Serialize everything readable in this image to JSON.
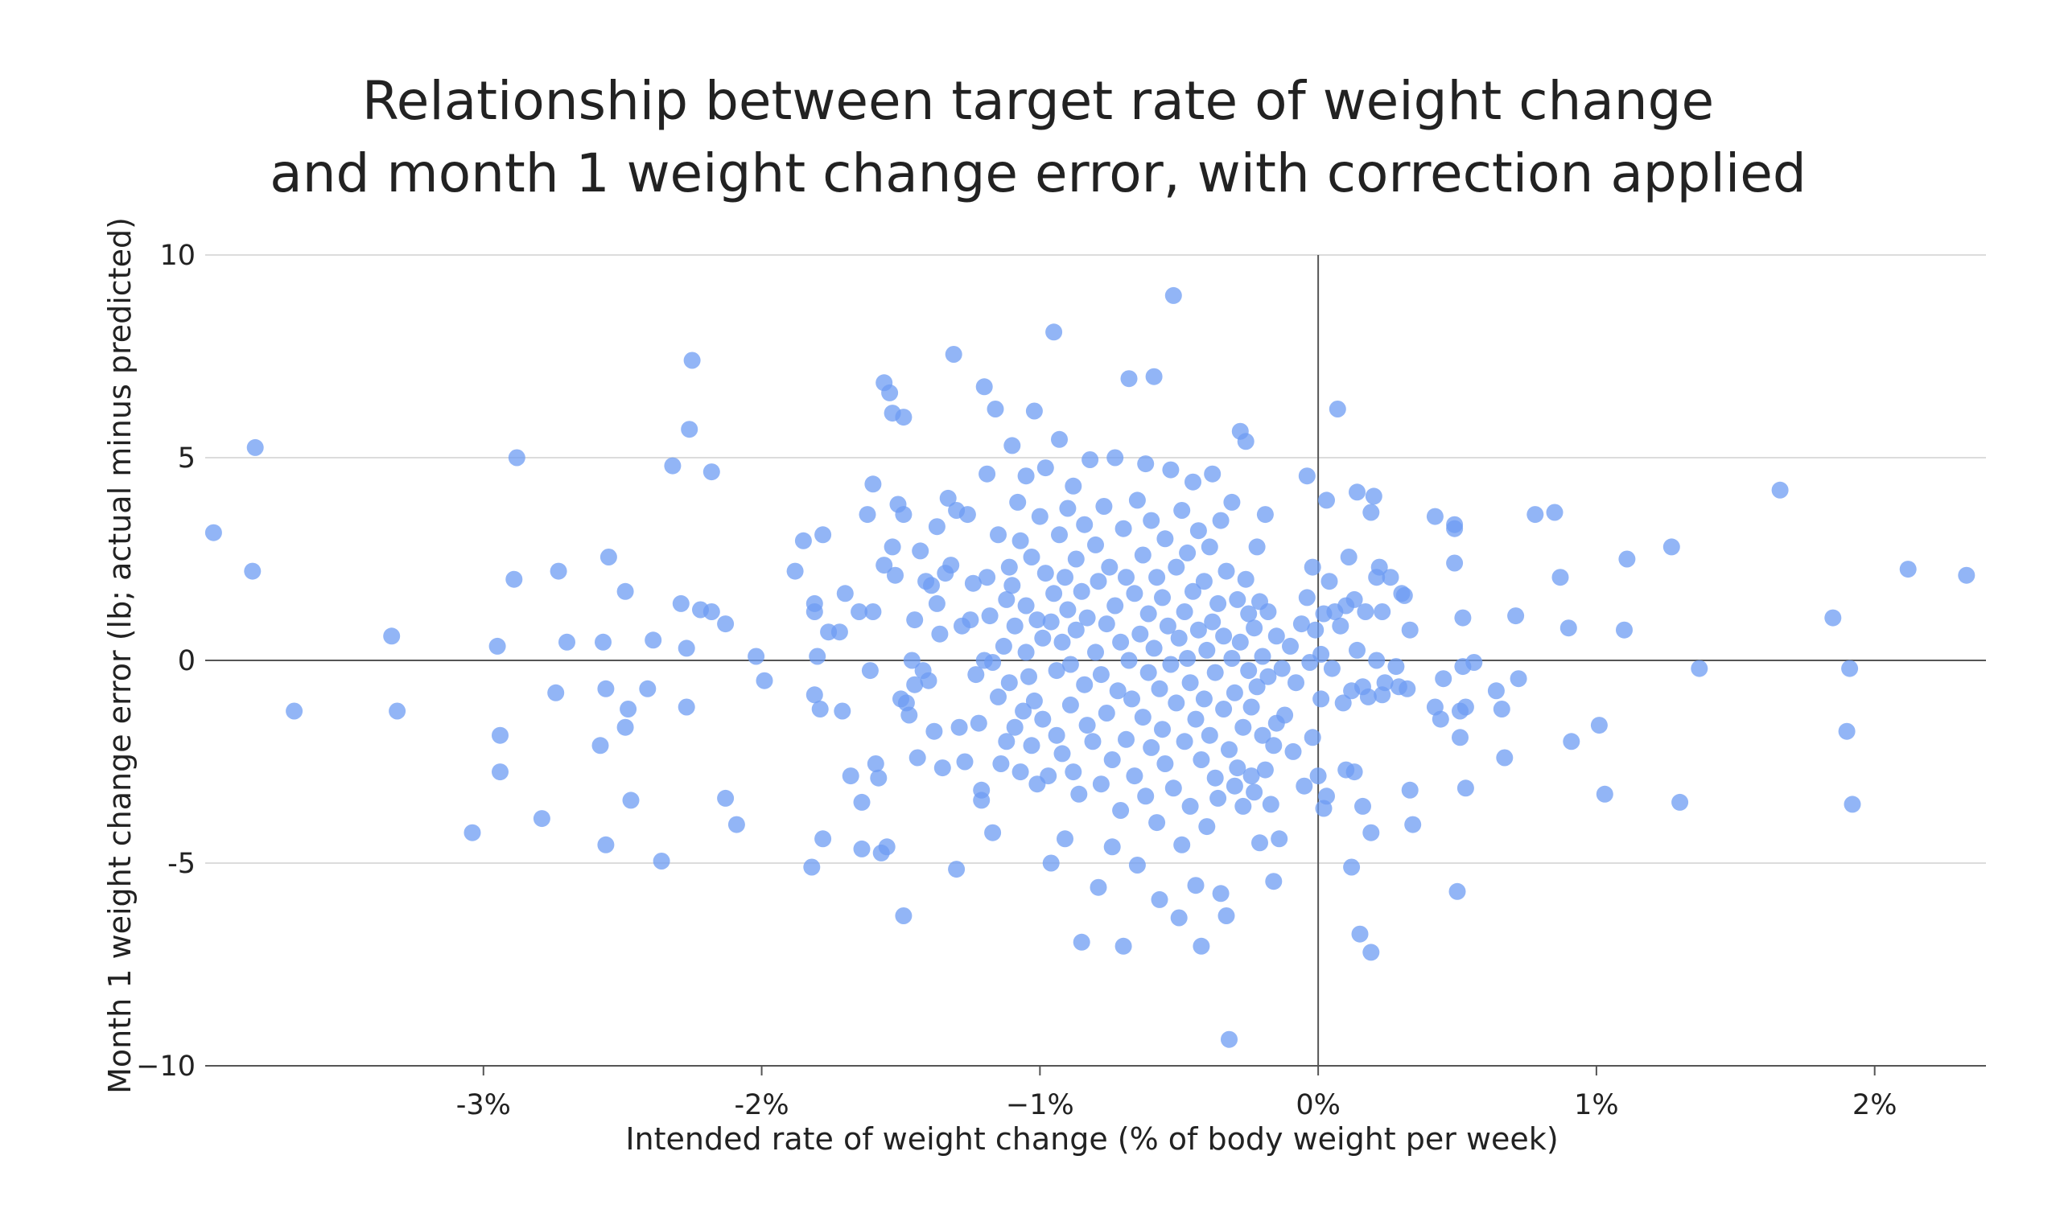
{
  "chart_data": {
    "type": "scatter",
    "title_lines": [
      "Relationship between target rate of weight change",
      "and month 1 weight change error, with correction applied"
    ],
    "xlabel": "Intended rate of weight change (% of body weight per week)",
    "ylabel": "Month 1 weight change error (lb; actual minus predicted)",
    "xlim": [
      -4.0,
      2.4
    ],
    "ylim": [
      -10,
      10
    ],
    "x_unit": "percent of body weight per week",
    "y_unit": "lb",
    "x_ticks": [
      {
        "value": -3,
        "label": "-3%"
      },
      {
        "value": -2,
        "label": "-2%"
      },
      {
        "value": -1,
        "label": "−1%"
      },
      {
        "value": 0,
        "label": "0%"
      },
      {
        "value": 1,
        "label": "1%"
      },
      {
        "value": 2,
        "label": "2%"
      }
    ],
    "y_ticks": [
      {
        "value": 10,
        "label": "10"
      },
      {
        "value": 5,
        "label": "5"
      },
      {
        "value": 0,
        "label": "0"
      },
      {
        "value": -5,
        "label": "-5"
      },
      {
        "value": -10,
        "label": "−10"
      }
    ],
    "grid": "horizontal",
    "reference_lines": {
      "x": 0,
      "y": 0
    },
    "marker_color": "#6d9cf3",
    "marker_opacity": 0.75,
    "points": [
      [
        -3.97,
        3.15
      ],
      [
        -3.82,
        5.25
      ],
      [
        -3.83,
        2.2
      ],
      [
        -3.68,
        -1.25
      ],
      [
        -3.33,
        0.6
      ],
      [
        -3.31,
        -1.25
      ],
      [
        -3.04,
        -4.25
      ],
      [
        -2.94,
        -1.85
      ],
      [
        -2.94,
        -2.75
      ],
      [
        -2.95,
        0.35
      ],
      [
        -2.89,
        2.0
      ],
      [
        -2.88,
        5.0
      ],
      [
        -2.79,
        -3.9
      ],
      [
        -2.74,
        -0.8
      ],
      [
        -2.73,
        2.2
      ],
      [
        -2.7,
        0.45
      ],
      [
        -2.58,
        -2.1
      ],
      [
        -2.57,
        0.45
      ],
      [
        -2.56,
        -4.55
      ],
      [
        -2.56,
        -0.7
      ],
      [
        -2.55,
        2.55
      ],
      [
        -2.49,
        1.7
      ],
      [
        -2.49,
        -1.65
      ],
      [
        -2.48,
        -1.2
      ],
      [
        -2.47,
        -3.45
      ],
      [
        -2.41,
        -0.7
      ],
      [
        -2.39,
        0.5
      ],
      [
        -2.36,
        -4.95
      ],
      [
        -2.32,
        4.8
      ],
      [
        -2.29,
        1.4
      ],
      [
        -2.27,
        0.3
      ],
      [
        -2.27,
        -1.15
      ],
      [
        -2.26,
        5.7
      ],
      [
        -2.25,
        7.4
      ],
      [
        -2.22,
        1.25
      ],
      [
        -2.18,
        4.65
      ],
      [
        -2.18,
        1.2
      ],
      [
        -2.13,
        -3.4
      ],
      [
        -2.13,
        0.9
      ],
      [
        -2.09,
        -4.05
      ],
      [
        -2.02,
        0.1
      ],
      [
        -1.99,
        -0.5
      ],
      [
        -1.88,
        2.2
      ],
      [
        -1.85,
        2.95
      ],
      [
        -1.82,
        -5.1
      ],
      [
        -1.81,
        -0.85
      ],
      [
        -1.81,
        1.4
      ],
      [
        -1.81,
        1.2
      ],
      [
        -1.8,
        0.1
      ],
      [
        -1.79,
        -1.2
      ],
      [
        -1.78,
        -4.4
      ],
      [
        -1.78,
        3.1
      ],
      [
        -1.76,
        0.7
      ],
      [
        -1.72,
        0.7
      ],
      [
        -1.71,
        -1.25
      ],
      [
        -1.7,
        1.65
      ],
      [
        -1.68,
        -2.85
      ],
      [
        -1.65,
        1.2
      ],
      [
        -1.64,
        -4.65
      ],
      [
        -1.64,
        -3.5
      ],
      [
        -1.62,
        3.6
      ],
      [
        -1.61,
        -0.25
      ],
      [
        -1.6,
        4.35
      ],
      [
        -1.6,
        1.2
      ],
      [
        -1.59,
        -2.55
      ],
      [
        -1.58,
        -2.9
      ],
      [
        -1.57,
        -4.75
      ],
      [
        -1.56,
        6.85
      ],
      [
        -1.56,
        2.35
      ],
      [
        -1.55,
        -4.6
      ],
      [
        -1.54,
        6.6
      ],
      [
        -1.53,
        6.1
      ],
      [
        -1.53,
        2.8
      ],
      [
        -1.52,
        2.1
      ],
      [
        -1.51,
        3.85
      ],
      [
        -1.5,
        -0.95
      ],
      [
        -1.49,
        -6.3
      ],
      [
        -1.49,
        6.0
      ],
      [
        -1.49,
        3.6
      ],
      [
        -1.48,
        -1.05
      ],
      [
        -1.47,
        -1.35
      ],
      [
        -1.46,
        0.0
      ],
      [
        -1.45,
        -0.6
      ],
      [
        -1.45,
        1.0
      ],
      [
        -1.44,
        -2.4
      ],
      [
        -1.43,
        2.7
      ],
      [
        -1.42,
        -0.25
      ],
      [
        -1.41,
        1.95
      ],
      [
        -1.4,
        -0.5
      ],
      [
        -1.39,
        1.85
      ],
      [
        -1.38,
        -1.75
      ],
      [
        -1.37,
        3.3
      ],
      [
        -1.37,
        1.4
      ],
      [
        -1.36,
        0.65
      ],
      [
        -1.35,
        -2.65
      ],
      [
        -1.34,
        2.15
      ],
      [
        -1.33,
        4.0
      ],
      [
        -1.32,
        2.35
      ],
      [
        -1.31,
        7.55
      ],
      [
        -1.3,
        -5.15
      ],
      [
        -1.3,
        3.7
      ],
      [
        -1.29,
        -1.65
      ],
      [
        -1.28,
        0.85
      ],
      [
        -1.27,
        -2.5
      ],
      [
        -1.26,
        3.6
      ],
      [
        -1.25,
        1.0
      ],
      [
        -1.24,
        1.9
      ],
      [
        -1.23,
        -0.35
      ],
      [
        -1.22,
        -1.55
      ],
      [
        -1.21,
        -3.2
      ],
      [
        -1.21,
        -3.45
      ],
      [
        -1.2,
        6.75
      ],
      [
        -1.2,
        0.0
      ],
      [
        -1.19,
        2.05
      ],
      [
        -1.19,
        4.6
      ],
      [
        -1.18,
        1.1
      ],
      [
        -1.17,
        -0.05
      ],
      [
        -1.17,
        -4.25
      ],
      [
        -1.16,
        6.2
      ],
      [
        -1.15,
        3.1
      ],
      [
        -1.15,
        -0.9
      ],
      [
        -1.14,
        -2.55
      ],
      [
        -1.13,
        0.35
      ],
      [
        -1.12,
        -2.0
      ],
      [
        -1.12,
        1.5
      ],
      [
        -1.11,
        2.3
      ],
      [
        -1.11,
        -0.55
      ],
      [
        -1.1,
        5.3
      ],
      [
        -1.1,
        1.85
      ],
      [
        -1.09,
        0.85
      ],
      [
        -1.09,
        -1.65
      ],
      [
        -1.08,
        3.9
      ],
      [
        -1.07,
        -2.75
      ],
      [
        -1.07,
        2.95
      ],
      [
        -1.06,
        -1.25
      ],
      [
        -1.05,
        0.2
      ],
      [
        -1.05,
        1.35
      ],
      [
        -1.05,
        4.55
      ],
      [
        -1.04,
        -0.4
      ],
      [
        -1.03,
        2.55
      ],
      [
        -1.03,
        -2.1
      ],
      [
        -1.02,
        -1.0
      ],
      [
        -1.02,
        6.15
      ],
      [
        -1.01,
        1.0
      ],
      [
        -1.01,
        -3.05
      ],
      [
        -1.0,
        3.55
      ],
      [
        -0.99,
        0.55
      ],
      [
        -0.99,
        -1.45
      ],
      [
        -0.98,
        2.15
      ],
      [
        -0.98,
        4.75
      ],
      [
        -0.97,
        -2.85
      ],
      [
        -0.96,
        0.95
      ],
      [
        -0.96,
        -5.0
      ],
      [
        -0.95,
        8.1
      ],
      [
        -0.95,
        1.65
      ],
      [
        -0.94,
        -0.25
      ],
      [
        -0.94,
        -1.85
      ],
      [
        -0.93,
        3.1
      ],
      [
        -0.93,
        5.45
      ],
      [
        -0.92,
        0.45
      ],
      [
        -0.92,
        -2.3
      ],
      [
        -0.91,
        2.05
      ],
      [
        -0.91,
        -4.4
      ],
      [
        -0.9,
        1.25
      ],
      [
        -0.9,
        3.75
      ],
      [
        -0.89,
        -1.1
      ],
      [
        -0.89,
        -0.1
      ],
      [
        -0.88,
        4.3
      ],
      [
        -0.88,
        -2.75
      ],
      [
        -0.87,
        0.75
      ],
      [
        -0.87,
        2.5
      ],
      [
        -0.86,
        -3.3
      ],
      [
        -0.85,
        -6.95
      ],
      [
        -0.85,
        1.7
      ],
      [
        -0.84,
        -0.6
      ],
      [
        -0.84,
        3.35
      ],
      [
        -0.83,
        1.05
      ],
      [
        -0.83,
        -1.6
      ],
      [
        -0.82,
        4.95
      ],
      [
        -0.81,
        -2.0
      ],
      [
        -0.8,
        0.2
      ],
      [
        -0.8,
        2.85
      ],
      [
        -0.79,
        -5.6
      ],
      [
        -0.79,
        1.95
      ],
      [
        -0.78,
        -0.35
      ],
      [
        -0.78,
        -3.05
      ],
      [
        -0.77,
        3.8
      ],
      [
        -0.76,
        0.9
      ],
      [
        -0.76,
        -1.3
      ],
      [
        -0.75,
        2.3
      ],
      [
        -0.74,
        -4.6
      ],
      [
        -0.74,
        -2.45
      ],
      [
        -0.73,
        1.35
      ],
      [
        -0.73,
        5.0
      ],
      [
        -0.72,
        -0.75
      ],
      [
        -0.71,
        0.45
      ],
      [
        -0.71,
        -3.7
      ],
      [
        -0.7,
        3.25
      ],
      [
        -0.7,
        -7.05
      ],
      [
        -0.69,
        2.05
      ],
      [
        -0.69,
        -1.95
      ],
      [
        -0.68,
        6.95
      ],
      [
        -0.68,
        0.0
      ],
      [
        -0.67,
        -0.95
      ],
      [
        -0.66,
        1.65
      ],
      [
        -0.66,
        -2.85
      ],
      [
        -0.65,
        3.95
      ],
      [
        -0.65,
        -5.05
      ],
      [
        -0.64,
        0.65
      ],
      [
        -0.63,
        2.6
      ],
      [
        -0.63,
        -1.4
      ],
      [
        -0.62,
        -3.35
      ],
      [
        -0.62,
        4.85
      ],
      [
        -0.61,
        1.15
      ],
      [
        -0.61,
        -0.3
      ],
      [
        -0.6,
        -2.15
      ],
      [
        -0.6,
        3.45
      ],
      [
        -0.59,
        7.0
      ],
      [
        -0.59,
        0.3
      ],
      [
        -0.58,
        -4.0
      ],
      [
        -0.58,
        2.05
      ],
      [
        -0.57,
        -0.7
      ],
      [
        -0.57,
        -5.9
      ],
      [
        -0.56,
        1.55
      ],
      [
        -0.56,
        -1.7
      ],
      [
        -0.55,
        3.0
      ],
      [
        -0.55,
        -2.55
      ],
      [
        -0.54,
        0.85
      ],
      [
        -0.53,
        4.7
      ],
      [
        -0.53,
        -0.1
      ],
      [
        -0.52,
        9.0
      ],
      [
        -0.52,
        -3.15
      ],
      [
        -0.51,
        2.3
      ],
      [
        -0.51,
        -1.05
      ],
      [
        -0.5,
        0.55
      ],
      [
        -0.5,
        -6.35
      ],
      [
        -0.49,
        3.7
      ],
      [
        -0.49,
        -4.55
      ],
      [
        -0.48,
        1.2
      ],
      [
        -0.48,
        -2.0
      ],
      [
        -0.47,
        0.05
      ],
      [
        -0.47,
        2.65
      ],
      [
        -0.46,
        -0.55
      ],
      [
        -0.46,
        -3.6
      ],
      [
        -0.45,
        1.7
      ],
      [
        -0.45,
        4.4
      ],
      [
        -0.44,
        -1.45
      ],
      [
        -0.44,
        -5.55
      ],
      [
        -0.43,
        0.75
      ],
      [
        -0.43,
        3.2
      ],
      [
        -0.42,
        -2.45
      ],
      [
        -0.42,
        -7.05
      ],
      [
        -0.41,
        1.95
      ],
      [
        -0.41,
        -0.95
      ],
      [
        -0.4,
        0.25
      ],
      [
        -0.4,
        -4.1
      ],
      [
        -0.39,
        2.8
      ],
      [
        -0.39,
        -1.85
      ],
      [
        -0.38,
        4.6
      ],
      [
        -0.38,
        0.95
      ],
      [
        -0.37,
        -2.9
      ],
      [
        -0.37,
        -0.3
      ],
      [
        -0.36,
        1.4
      ],
      [
        -0.36,
        -3.4
      ],
      [
        -0.35,
        3.45
      ],
      [
        -0.35,
        -5.75
      ],
      [
        -0.34,
        -1.2
      ],
      [
        -0.34,
        0.6
      ],
      [
        -0.33,
        -6.3
      ],
      [
        -0.33,
        2.2
      ],
      [
        -0.32,
        -9.35
      ],
      [
        -0.32,
        -2.2
      ],
      [
        -0.31,
        0.05
      ],
      [
        -0.31,
        3.9
      ],
      [
        -0.3,
        -0.8
      ],
      [
        -0.3,
        -3.1
      ],
      [
        -0.29,
        1.5
      ],
      [
        -0.29,
        -2.65
      ],
      [
        -0.28,
        5.65
      ],
      [
        -0.28,
        0.45
      ],
      [
        -0.27,
        -1.65
      ],
      [
        -0.27,
        -3.6
      ],
      [
        -0.26,
        2.0
      ],
      [
        -0.26,
        5.4
      ],
      [
        -0.25,
        -0.25
      ],
      [
        -0.25,
        1.15
      ],
      [
        -0.24,
        -2.85
      ],
      [
        -0.24,
        -1.15
      ],
      [
        -0.23,
        0.8
      ],
      [
        -0.23,
        -3.25
      ],
      [
        -0.22,
        2.8
      ],
      [
        -0.22,
        -0.65
      ],
      [
        -0.21,
        1.45
      ],
      [
        -0.21,
        -4.5
      ],
      [
        -0.2,
        -1.85
      ],
      [
        -0.2,
        0.1
      ],
      [
        -0.19,
        3.6
      ],
      [
        -0.19,
        -2.7
      ],
      [
        -0.18,
        -0.4
      ],
      [
        -0.18,
        1.2
      ],
      [
        -0.17,
        -3.55
      ],
      [
        -0.16,
        -5.45
      ],
      [
        -0.16,
        -2.1
      ],
      [
        -0.15,
        0.6
      ],
      [
        -0.15,
        -1.55
      ],
      [
        -0.14,
        -4.4
      ],
      [
        -0.13,
        -0.2
      ],
      [
        -0.12,
        -1.35
      ],
      [
        -0.1,
        0.35
      ],
      [
        -0.09,
        -2.25
      ],
      [
        -0.08,
        -0.55
      ],
      [
        -0.06,
        0.9
      ],
      [
        -0.05,
        -3.1
      ],
      [
        -0.04,
        4.55
      ],
      [
        -0.04,
        1.55
      ],
      [
        -0.03,
        -0.05
      ],
      [
        -0.02,
        2.3
      ],
      [
        -0.02,
        -1.9
      ],
      [
        -0.01,
        0.75
      ],
      [
        0.0,
        -2.85
      ],
      [
        0.01,
        0.15
      ],
      [
        0.01,
        -0.95
      ],
      [
        0.02,
        -3.65
      ],
      [
        0.02,
        1.15
      ],
      [
        0.03,
        3.95
      ],
      [
        0.03,
        -3.35
      ],
      [
        0.04,
        1.95
      ],
      [
        0.05,
        -0.2
      ],
      [
        0.06,
        1.2
      ],
      [
        0.07,
        6.2
      ],
      [
        0.08,
        0.85
      ],
      [
        0.09,
        -1.05
      ],
      [
        0.1,
        1.35
      ],
      [
        0.1,
        -2.7
      ],
      [
        0.11,
        2.55
      ],
      [
        0.12,
        -0.75
      ],
      [
        0.12,
        -5.1
      ],
      [
        0.13,
        1.5
      ],
      [
        0.13,
        -2.75
      ],
      [
        0.14,
        4.15
      ],
      [
        0.14,
        0.25
      ],
      [
        0.15,
        -6.75
      ],
      [
        0.16,
        -0.65
      ],
      [
        0.16,
        -3.6
      ],
      [
        0.17,
        1.2
      ],
      [
        0.18,
        -0.9
      ],
      [
        0.19,
        -4.25
      ],
      [
        0.19,
        3.65
      ],
      [
        0.19,
        -7.2
      ],
      [
        0.2,
        4.05
      ],
      [
        0.21,
        0.0
      ],
      [
        0.21,
        2.05
      ],
      [
        0.22,
        2.3
      ],
      [
        0.23,
        -0.85
      ],
      [
        0.23,
        1.2
      ],
      [
        0.24,
        -0.55
      ],
      [
        0.26,
        2.05
      ],
      [
        0.28,
        -0.15
      ],
      [
        0.29,
        -0.65
      ],
      [
        0.3,
        1.65
      ],
      [
        0.31,
        1.6
      ],
      [
        0.32,
        -0.7
      ],
      [
        0.33,
        -3.2
      ],
      [
        0.33,
        0.75
      ],
      [
        0.34,
        -4.05
      ],
      [
        0.42,
        3.55
      ],
      [
        0.42,
        -1.15
      ],
      [
        0.44,
        -1.45
      ],
      [
        0.45,
        -0.45
      ],
      [
        0.49,
        3.35
      ],
      [
        0.49,
        3.25
      ],
      [
        0.49,
        2.4
      ],
      [
        0.5,
        -5.7
      ],
      [
        0.51,
        -1.25
      ],
      [
        0.51,
        -1.9
      ],
      [
        0.52,
        -0.15
      ],
      [
        0.52,
        1.05
      ],
      [
        0.53,
        -3.15
      ],
      [
        0.53,
        -1.15
      ],
      [
        0.56,
        -0.05
      ],
      [
        0.64,
        -0.75
      ],
      [
        0.66,
        -1.2
      ],
      [
        0.67,
        -2.4
      ],
      [
        0.71,
        1.1
      ],
      [
        0.72,
        -0.45
      ],
      [
        0.78,
        3.6
      ],
      [
        0.85,
        3.65
      ],
      [
        0.87,
        2.05
      ],
      [
        0.9,
        0.8
      ],
      [
        0.91,
        -2.0
      ],
      [
        1.01,
        -1.6
      ],
      [
        1.03,
        -3.3
      ],
      [
        1.1,
        0.75
      ],
      [
        1.11,
        2.5
      ],
      [
        1.27,
        2.8
      ],
      [
        1.3,
        -3.5
      ],
      [
        1.37,
        -0.2
      ],
      [
        1.66,
        4.2
      ],
      [
        1.85,
        1.05
      ],
      [
        1.9,
        -1.75
      ],
      [
        1.91,
        -0.2
      ],
      [
        1.92,
        -3.55
      ],
      [
        2.12,
        2.25
      ],
      [
        2.33,
        2.1
      ]
    ]
  }
}
